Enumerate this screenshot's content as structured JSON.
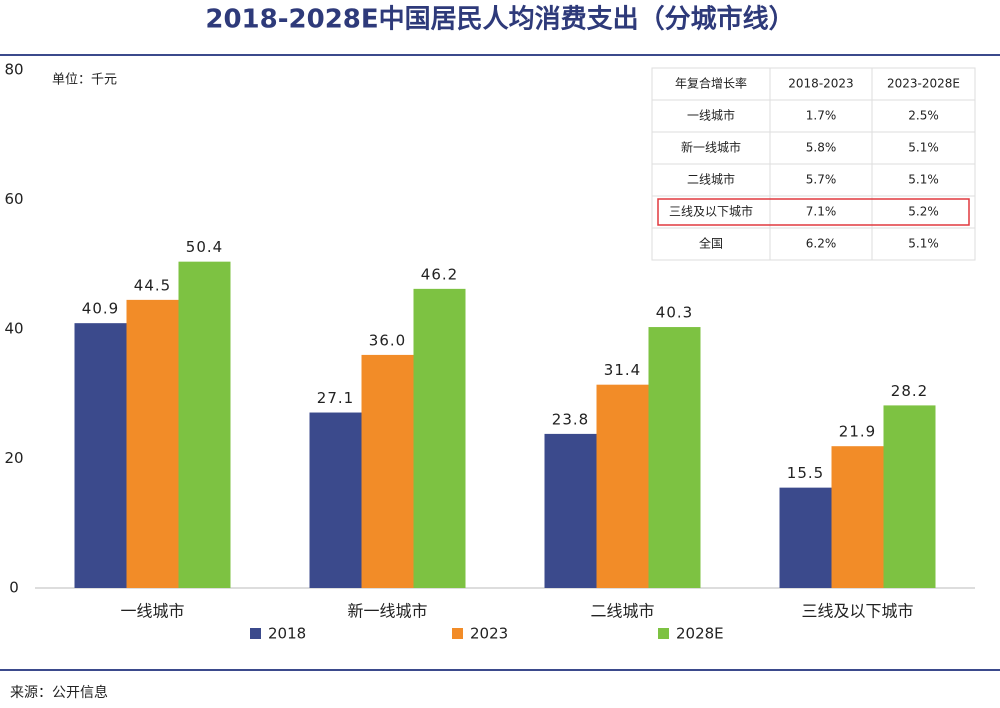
{
  "chart_data": {
    "type": "bar",
    "title": "2018-2028E中国居民人均消费支出（分城市线）",
    "unit_label": "单位：千元",
    "categories": [
      "一线城市",
      "新一线城市",
      "二线城市",
      "三线及以下城市"
    ],
    "series": [
      {
        "name": "2018",
        "color": "#3b4a8c",
        "values": [
          40.9,
          27.1,
          23.8,
          15.5
        ],
        "value_labels": [
          "40.9",
          "27.1",
          "23.8",
          "15.5"
        ]
      },
      {
        "name": "2023",
        "color": "#f28c28",
        "values": [
          44.5,
          36.0,
          31.4,
          21.9
        ],
        "value_labels": [
          "44.5",
          "36.0",
          "31.4",
          "21.9"
        ]
      },
      {
        "name": "2028E",
        "color": "#7dc242",
        "values": [
          50.4,
          46.2,
          40.3,
          28.2
        ],
        "value_labels": [
          "50.4",
          "46.2",
          "40.3",
          "28.2"
        ]
      }
    ],
    "ylim": [
      0,
      80
    ],
    "yticks": [
      0,
      20,
      40,
      60,
      80
    ],
    "grid": false,
    "legend": "bottom"
  },
  "table": {
    "header": [
      "年复合增长率",
      "2018-2023",
      "2023-2028E"
    ],
    "rows": [
      [
        "一线城市",
        "1.7%",
        "2.5%"
      ],
      [
        "新一线城市",
        "5.8%",
        "5.1%"
      ],
      [
        "二线城市",
        "5.7%",
        "5.1%"
      ],
      [
        "三线及以下城市",
        "7.1%",
        "5.2%"
      ],
      [
        "全国",
        "6.2%",
        "5.1%"
      ]
    ],
    "highlight_row": 3
  },
  "source": "来源：公开信息"
}
